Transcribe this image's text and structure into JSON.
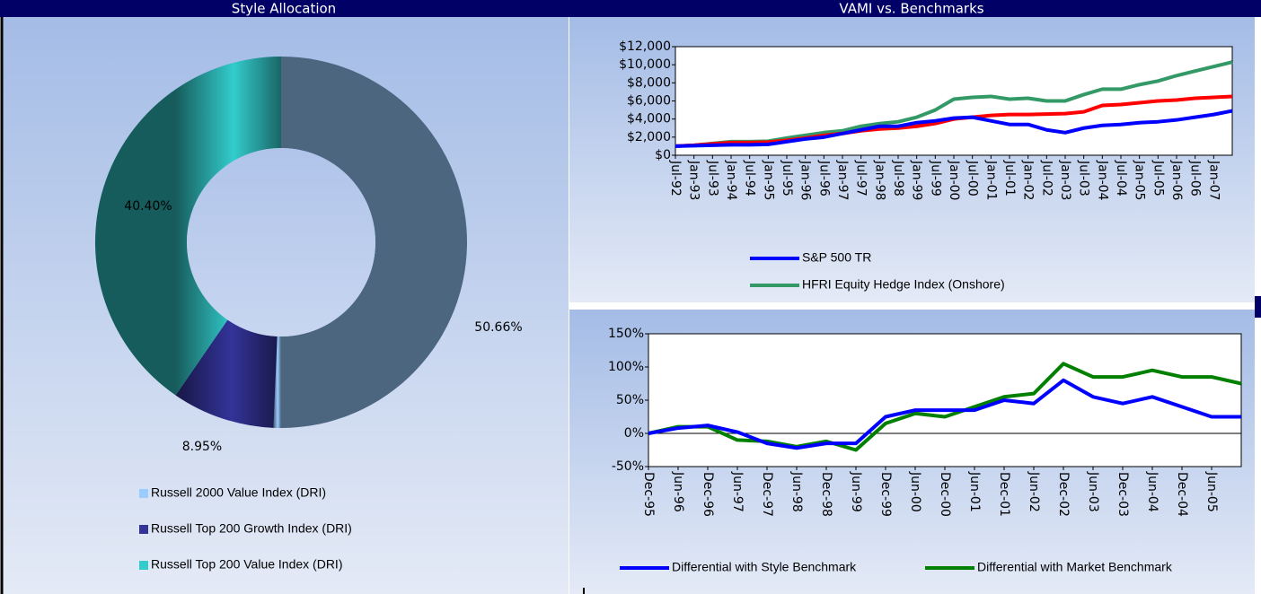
{
  "chart_data": [
    {
      "type": "pie",
      "title": "Style Allocation",
      "categories": [
        "Russell 2000 Value Index (DRI)",
        "Russell Top 200 Growth Index (DRI)",
        "Russell Top 200 Value Index (DRI)"
      ],
      "values": [
        50.66,
        8.95,
        40.4
      ],
      "value_labels": [
        "50.66%",
        "8.95%",
        "40.40%"
      ],
      "colors": [
        "#99ccff",
        "#333399",
        "#33cccc"
      ],
      "legend": "bottom"
    },
    {
      "type": "line",
      "title": "VAMI vs. Benchmarks",
      "categories": [
        "Jul-92",
        "Jan-93",
        "Jul-93",
        "Jan-94",
        "Jul-94",
        "Jan-95",
        "Jul-95",
        "Jan-96",
        "Jul-96",
        "Jan-97",
        "Jul-97",
        "Jan-98",
        "Jul-98",
        "Jan-99",
        "Jul-99",
        "Jan-00",
        "Jul-00",
        "Jan-01",
        "Jul-01",
        "Jan-02",
        "Jul-02",
        "Jan-03",
        "Jul-03",
        "Jan-04",
        "Jul-04",
        "Jan-05",
        "Jul-05",
        "Jan-06",
        "Jul-06",
        "Jan-07",
        null
      ],
      "series": [
        {
          "name": "S&P 500 TR",
          "color": "#0000ff",
          "values": [
            1000,
            1050,
            1100,
            1150,
            1150,
            1200,
            1500,
            1800,
            2000,
            2400,
            2800,
            3200,
            3200,
            3600,
            3800,
            4100,
            4200,
            3800,
            3400,
            3400,
            2800,
            2500,
            3000,
            3300,
            3400,
            3600,
            3700,
            3900,
            4200,
            4500,
            4900
          ]
        },
        {
          "color": "#ff0000",
          "values": [
            1000,
            1100,
            1250,
            1400,
            1400,
            1450,
            1650,
            1900,
            2200,
            2400,
            2700,
            2900,
            3000,
            3200,
            3500,
            4000,
            4200,
            4400,
            4500,
            4500,
            4550,
            4600,
            4800,
            5500,
            5600,
            5800,
            6000,
            6100,
            6300,
            6400,
            6500
          ]
        },
        {
          "name": "HFRI Equity Hedge Index (Onshore)",
          "color": "#339966",
          "values": [
            1000,
            1100,
            1300,
            1500,
            1500,
            1550,
            1900,
            2200,
            2500,
            2700,
            3200,
            3500,
            3700,
            4200,
            5000,
            6200,
            6400,
            6500,
            6200,
            6300,
            6000,
            6000,
            6700,
            7300,
            7300,
            7800,
            8200,
            8800,
            9300,
            9800,
            10300
          ]
        }
      ],
      "ylim": [
        0,
        12000
      ],
      "yticks": [
        {
          "value": 0,
          "label": "$0"
        },
        {
          "value": 2000,
          "label": "$2,000"
        },
        {
          "value": 4000,
          "label": "$4,000"
        },
        {
          "value": 6000,
          "label": "$6,000"
        },
        {
          "value": 8000,
          "label": "$8,000"
        },
        {
          "value": 10000,
          "label": "$10,000"
        },
        {
          "value": 12000,
          "label": "$12,000"
        }
      ],
      "legend": "bottom"
    },
    {
      "type": "line",
      "categories": [
        "Dec-95",
        "Jun-96",
        "Dec-96",
        "Jun-97",
        "Dec-97",
        "Jun-98",
        "Dec-98",
        "Jun-99",
        "Dec-99",
        "Jun-00",
        "Dec-00",
        "Jun-01",
        "Dec-01",
        "Jun-02",
        "Dec-02",
        "Jun-03",
        "Dec-03",
        "Jun-04",
        "Dec-04",
        "Jun-05",
        null
      ],
      "series": [
        {
          "name": "Differential with Style Benchmark",
          "color": "#0000ff",
          "values": [
            0,
            8,
            12,
            2,
            -15,
            -22,
            -15,
            -15,
            25,
            35,
            35,
            35,
            50,
            45,
            80,
            55,
            45,
            55,
            40,
            25,
            25
          ]
        },
        {
          "name": "Differential with Market Benchmark",
          "color": "#008000",
          "values": [
            0,
            10,
            10,
            -10,
            -12,
            -20,
            -12,
            -25,
            15,
            30,
            25,
            40,
            55,
            60,
            105,
            85,
            85,
            95,
            85,
            85,
            75
          ]
        }
      ],
      "ylim": [
        -50,
        150
      ],
      "yticks": [
        {
          "value": -50,
          "label": "-50%"
        },
        {
          "value": 0,
          "label": "0%"
        },
        {
          "value": 50,
          "label": "50%"
        },
        {
          "value": 100,
          "label": "100%"
        },
        {
          "value": 150,
          "label": "150%"
        }
      ],
      "legend": "bottom"
    }
  ]
}
